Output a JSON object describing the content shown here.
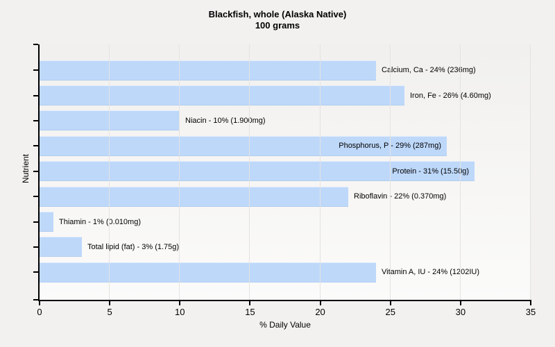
{
  "title": {
    "line1": "Blackfish, whole (Alaska Native)",
    "line2": "100 grams"
  },
  "chart_data": {
    "type": "bar",
    "orientation": "horizontal",
    "title": "Blackfish, whole (Alaska Native)",
    "subtitle": "100 grams",
    "xlabel": "% Daily Value",
    "ylabel": "Nutrient",
    "xlim": [
      0,
      35
    ],
    "x_ticks": [
      0,
      5,
      10,
      15,
      20,
      25,
      30,
      35
    ],
    "grid": "vertical",
    "legend": "none",
    "bar_color": "#bed8fa",
    "background_color": "#f2f1ef",
    "categories": [
      "Calcium, Ca",
      "Iron, Fe",
      "Niacin",
      "Phosphorus, P",
      "Protein",
      "Riboflavin",
      "Thiamin",
      "Total lipid (fat)",
      "Vitamin A, IU"
    ],
    "values": [
      24,
      26,
      10,
      29,
      31,
      22,
      1,
      3,
      24
    ],
    "amounts": [
      "236mg",
      "4.60mg",
      "1.900mg",
      "287mg",
      "15.50g",
      "0.370mg",
      "0.010mg",
      "1.75g",
      "1202IU"
    ],
    "bar_labels": [
      "Calcium, Ca - 24% (236mg)",
      "Iron, Fe - 26% (4.60mg)",
      "Niacin - 10% (1.900mg)",
      "Phosphorus, P - 29% (287mg)",
      "Protein - 31% (15.50g)",
      "Riboflavin - 22% (0.370mg)",
      "Thiamin - 1% (0.010mg)",
      "Total lipid (fat) - 3% (1.75g)",
      "Vitamin A, IU - 24% (1202IU)"
    ]
  }
}
